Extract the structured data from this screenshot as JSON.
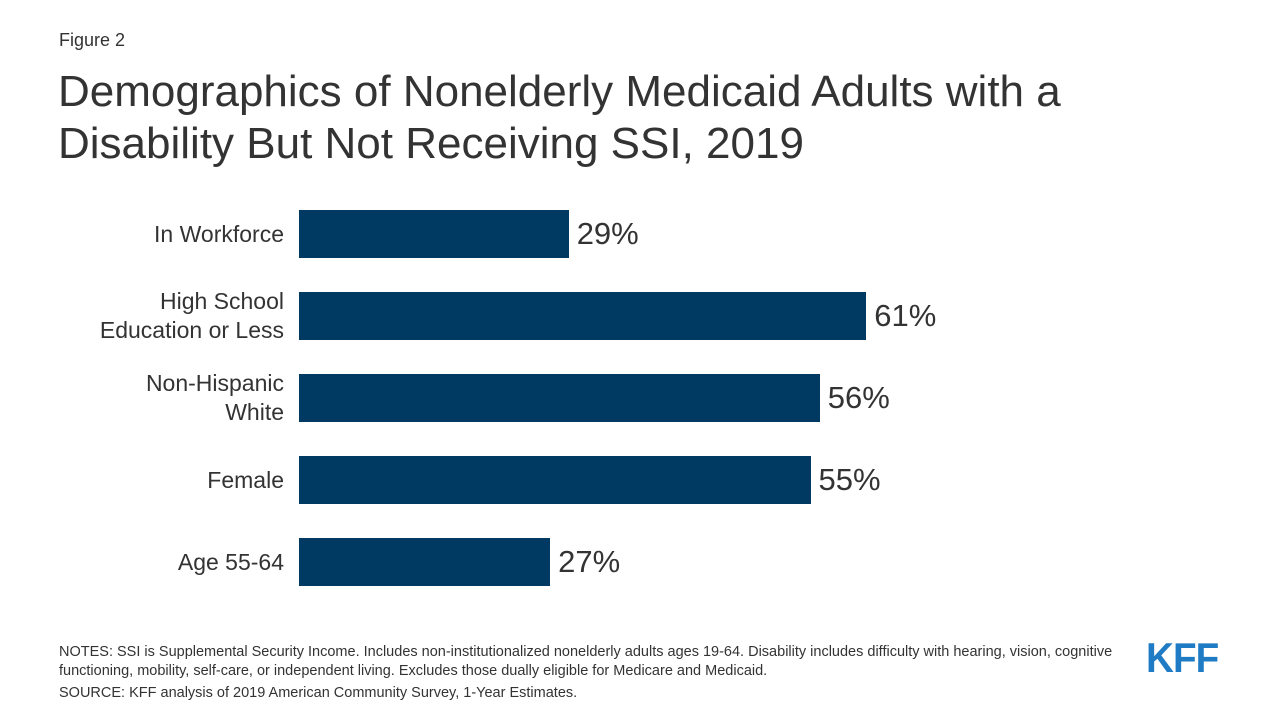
{
  "figure_label": "Figure 2",
  "title": "Demographics of Nonelderly Medicaid Adults with a Disability But Not Receiving SSI, 2019",
  "notes": "NOTES: SSI is Supplemental Security Income. Includes non-institutionalized nonelderly adults ages 19-64. Disability includes difficulty with hearing, vision, cognitive functioning, mobility, self-care, or independent living. Excludes those dually eligible for Medicare and Medicaid.",
  "source": "SOURCE: KFF analysis of 2019 American Community Survey, 1-Year Estimates.",
  "logo_text": "KFF",
  "colors": {
    "bar": "#003a63",
    "logo": "#1f7bc4",
    "text": "#333333"
  },
  "chart_data": {
    "type": "bar",
    "orientation": "horizontal",
    "categories": [
      "In Workforce",
      "High School Education or Less",
      "Non-Hispanic White",
      "Female",
      "Age 55-64"
    ],
    "category_lines": [
      [
        "In Workforce"
      ],
      [
        "High School",
        "Education or Less"
      ],
      [
        "Non-Hispanic",
        "White"
      ],
      [
        "Female"
      ],
      [
        "Age 55-64"
      ]
    ],
    "values": [
      29,
      61,
      56,
      55,
      27
    ],
    "value_labels": [
      "29%",
      "61%",
      "56%",
      "55%",
      "27%"
    ],
    "title": "Demographics of Nonelderly Medicaid Adults with a Disability But Not Receiving SSI, 2019",
    "xlabel": "",
    "ylabel": "",
    "xlim": [
      0,
      100
    ],
    "grid": false,
    "legend": "none"
  }
}
